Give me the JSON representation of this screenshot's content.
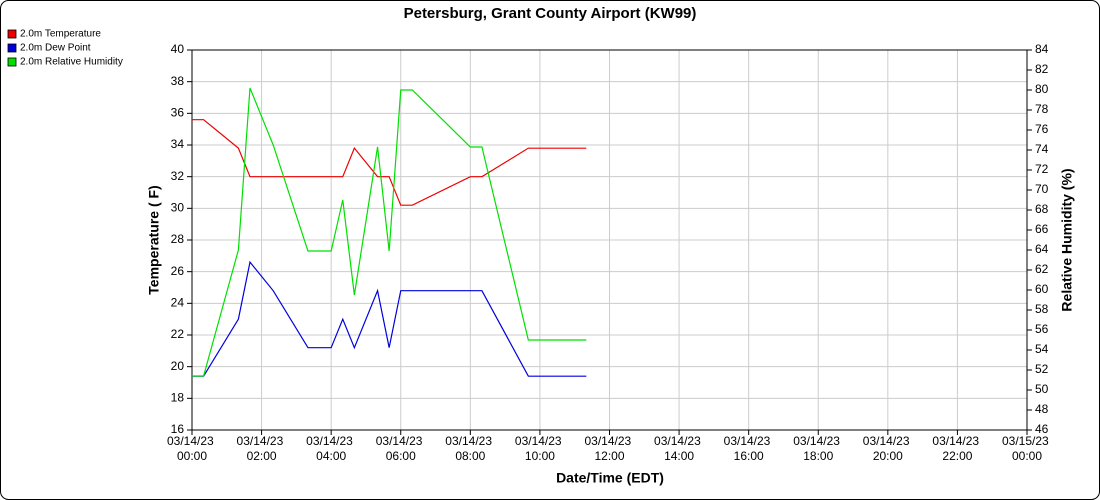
{
  "chart_data": {
    "type": "line",
    "title": "Petersburg, Grant County Airport (KW99)",
    "x_label": "Date/Time (EDT)",
    "y_label": "Temperature ( F)",
    "y2_label": "Relative Humidity (%)",
    "x": [
      "03/14/23 00:00",
      "03/14/23 00:20",
      "03/14/23 01:20",
      "03/14/23 01:40",
      "03/14/23 02:20",
      "03/14/23 03:20",
      "03/14/23 04:00",
      "03/14/23 04:20",
      "03/14/23 04:40",
      "03/14/23 05:20",
      "03/14/23 05:40",
      "03/14/23 06:00",
      "03/14/23 06:20",
      "03/14/23 08:00",
      "03/14/23 08:20",
      "03/14/23 09:40",
      "03/14/23 11:20"
    ],
    "series": [
      {
        "name": "2.0m Temperature",
        "color": "#ee0000",
        "values": [
          35.6,
          35.6,
          33.8,
          32,
          32,
          32,
          32,
          32,
          33.8,
          32,
          32,
          30.2,
          30.2,
          32,
          32,
          33.8,
          33.8
        ]
      },
      {
        "name": "2.0m Dew Point",
        "color": "#0000dd",
        "values": [
          19.4,
          19.4,
          23,
          26.6,
          24.8,
          21.2,
          21.2,
          23,
          21.2,
          24.8,
          21.2,
          24.8,
          24.8,
          24.8,
          24.8,
          19.4,
          19.4
        ]
      },
      {
        "name": "2.0m Relative Humidity",
        "color": "#00e000",
        "axis": "y2",
        "values": [
          51.4,
          51.4,
          64,
          80.2,
          74.5,
          63.9,
          63.9,
          69,
          59.5,
          74.3,
          63.9,
          80,
          80,
          74.3,
          74.3,
          55,
          55
        ]
      }
    ],
    "xlim": [
      "03/14/23 00:00",
      "03/15/23 00:00"
    ],
    "xticks": [
      "03/14/23 00:00",
      "03/14/23 02:00",
      "03/14/23 04:00",
      "03/14/23 06:00",
      "03/14/23 08:00",
      "03/14/23 10:00",
      "03/14/23 12:00",
      "03/14/23 14:00",
      "03/14/23 16:00",
      "03/14/23 18:00",
      "03/14/23 20:00",
      "03/14/23 22:00",
      "03/15/23 00:00"
    ],
    "ylim": [
      16,
      40
    ],
    "yticks": [
      16,
      18,
      20,
      22,
      24,
      26,
      28,
      30,
      32,
      34,
      36,
      38,
      40
    ],
    "y2lim": [
      46,
      84
    ],
    "y2ticks": [
      46,
      48,
      50,
      52,
      54,
      56,
      58,
      60,
      62,
      64,
      66,
      68,
      70,
      72,
      74,
      76,
      78,
      80,
      82,
      84
    ],
    "grid": true,
    "legend": "top-left"
  }
}
